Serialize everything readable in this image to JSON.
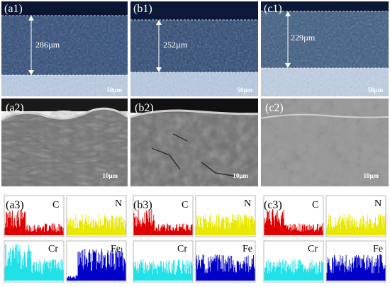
{
  "optical": [
    {
      "label": "(a1)",
      "thickness": "286µm",
      "scale": "50µm"
    },
    {
      "label": "(b1)",
      "thickness": "252µm",
      "scale": "50µm"
    },
    {
      "label": "(c1)",
      "thickness": "229µm",
      "scale": "50µm"
    }
  ],
  "sem": [
    {
      "label": "(a2)",
      "scale": "10µm"
    },
    {
      "label": "(b2)",
      "scale": "10µm"
    },
    {
      "label": "(c2)",
      "scale": "10µm"
    }
  ],
  "eds": [
    {
      "label": "(a3)",
      "elements": [
        "C",
        "N",
        "Cr",
        "Fe"
      ]
    },
    {
      "label": "(b3)",
      "elements": [
        "C",
        "N",
        "Cr",
        "Fe"
      ]
    },
    {
      "label": "(c3)",
      "elements": [
        "C",
        "N",
        "Cr",
        "Fe"
      ]
    }
  ],
  "colors": {
    "C": "#e00000",
    "N": "#e8e800",
    "Cr": "#20e0e8",
    "Fe": "#0000c8"
  }
}
